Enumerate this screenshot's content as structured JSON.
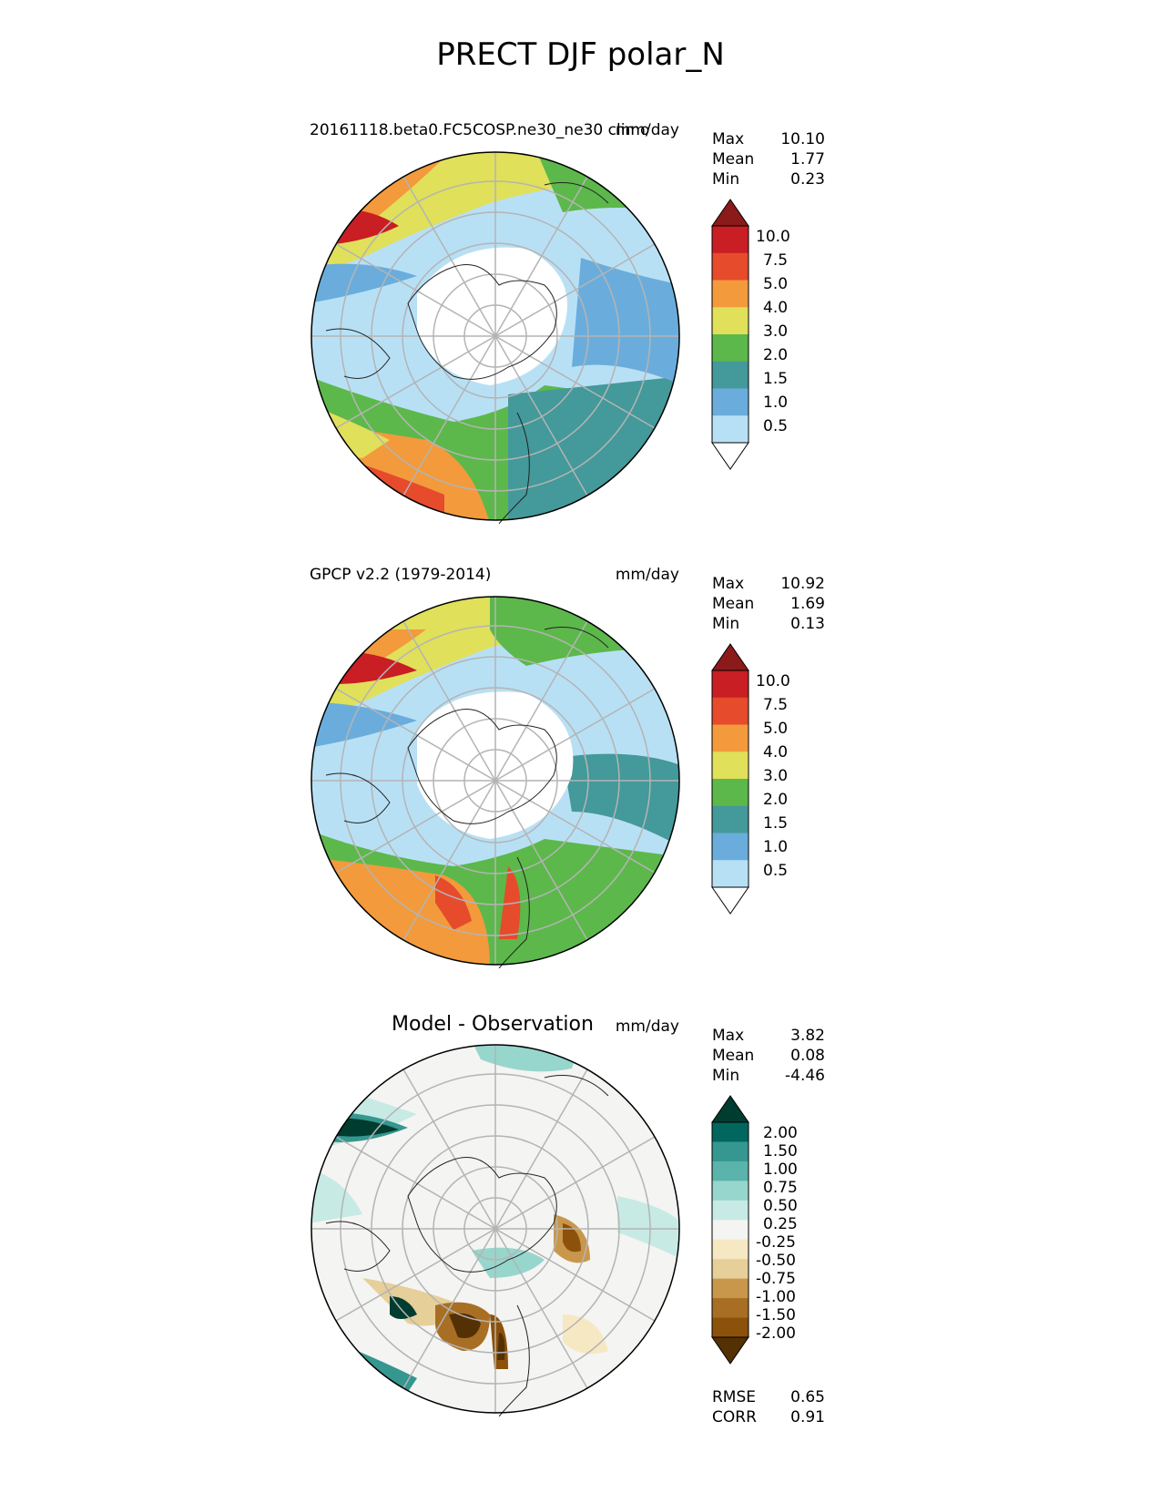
{
  "title": "PRECT DJF polar_N",
  "panels": [
    {
      "left_title": "20161118.beta0.FC5COSP.ne30_ne30 climo",
      "center_title": "",
      "units": "mm/day",
      "stats": [
        {
          "label": "Max",
          "value": "10.10"
        },
        {
          "label": "Mean",
          "value": "1.77"
        },
        {
          "label": "Min",
          "value": "0.23"
        }
      ],
      "colorbar": {
        "levels": [
          "10.0",
          "7.5",
          "5.0",
          "4.0",
          "3.0",
          "2.0",
          "1.5",
          "1.0",
          "0.5"
        ],
        "colors": [
          "#8b1a1a",
          "#c81e24",
          "#e64b2c",
          "#f39a3c",
          "#e0e05a",
          "#5cb84a",
          "#44999a",
          "#6aaddc",
          "#b8e0f5",
          "#ffffff"
        ]
      }
    },
    {
      "left_title": "GPCP v2.2 (1979-2014)",
      "center_title": "",
      "units": "mm/day",
      "stats": [
        {
          "label": "Max",
          "value": "10.92"
        },
        {
          "label": "Mean",
          "value": "1.69"
        },
        {
          "label": "Min",
          "value": "0.13"
        }
      ],
      "colorbar": {
        "levels": [
          "10.0",
          "7.5",
          "5.0",
          "4.0",
          "3.0",
          "2.0",
          "1.5",
          "1.0",
          "0.5"
        ],
        "colors": [
          "#8b1a1a",
          "#c81e24",
          "#e64b2c",
          "#f39a3c",
          "#e0e05a",
          "#5cb84a",
          "#44999a",
          "#6aaddc",
          "#b8e0f5",
          "#ffffff"
        ]
      }
    },
    {
      "left_title": "",
      "center_title": "Model - Observation",
      "units": "mm/day",
      "stats": [
        {
          "label": "Max",
          "value": "3.82"
        },
        {
          "label": "Mean",
          "value": "0.08"
        },
        {
          "label": "Min",
          "value": "-4.46"
        }
      ],
      "colorbar": {
        "levels": [
          "2.00",
          "1.50",
          "1.00",
          "0.75",
          "0.50",
          "0.25",
          "-0.25",
          "-0.50",
          "-0.75",
          "-1.00",
          "-1.50",
          "-2.00"
        ],
        "colors": [
          "#003c30",
          "#01665e",
          "#35978f",
          "#5ab4ac",
          "#97d6cc",
          "#c7eae5",
          "#f4f4f2",
          "#f6e8c3",
          "#e6cf98",
          "#c9974c",
          "#a86f24",
          "#8c510a",
          "#543005"
        ]
      },
      "footer_stats": [
        {
          "label": "RMSE",
          "value": "0.65"
        },
        {
          "label": "CORR",
          "value": "0.91"
        }
      ]
    }
  ]
}
